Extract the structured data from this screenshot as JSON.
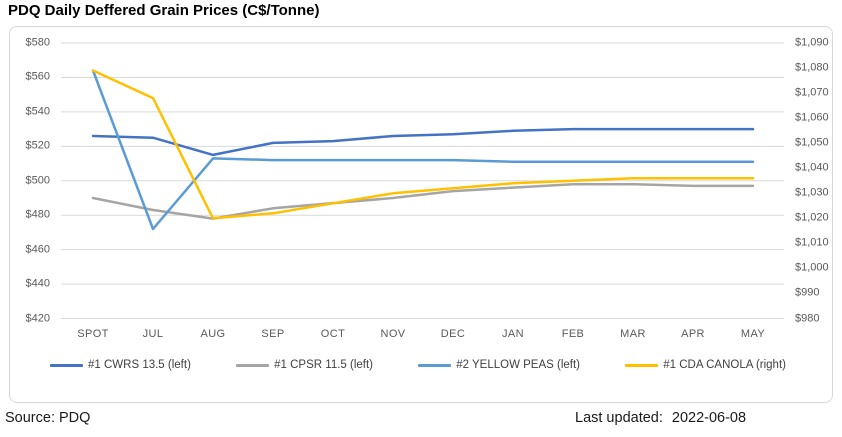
{
  "footer": {
    "source": "Source: PDQ",
    "last_updated_label": "Last updated:",
    "last_updated_value": "2022-06-08"
  },
  "chart_data": {
    "type": "line",
    "title": "PDQ Daily Deffered Grain Prices (C$/Tonne)",
    "categories": [
      "SPOT",
      "JUL",
      "AUG",
      "SEP",
      "OCT",
      "NOV",
      "DEC",
      "JAN",
      "FEB",
      "MAR",
      "APR",
      "MAY"
    ],
    "grid": true,
    "legend_position": "bottom",
    "left_axis": {
      "min": 420,
      "max": 580,
      "step": 20,
      "tick_labels": [
        "$580",
        "$560",
        "$540",
        "$520",
        "$500",
        "$480",
        "$460",
        "$440",
        "$420"
      ]
    },
    "right_axis": {
      "min": 980,
      "max": 1090,
      "step": 10,
      "tick_labels": [
        "$1,090",
        "$1,080",
        "$1,070",
        "$1,060",
        "$1,050",
        "$1,040",
        "$1,030",
        "$1,020",
        "$1,010",
        "$1,000",
        "$990",
        "$980"
      ]
    },
    "series": [
      {
        "name": "#1 CWRS 13.5 (left)",
        "axis": "left",
        "color": "#4472C4",
        "values": [
          526,
          525,
          515,
          522,
          523,
          526,
          527,
          529,
          530,
          530,
          530,
          530
        ]
      },
      {
        "name": "#1 CPSR 11.5 (left)",
        "axis": "left",
        "color": "#A5A5A5",
        "values": [
          490,
          483,
          478,
          484,
          487,
          490,
          494,
          496,
          498,
          498,
          497,
          497
        ]
      },
      {
        "name": "#2 YELLOW PEAS (left)",
        "axis": "left",
        "color": "#5B9BD5",
        "values": [
          564,
          472,
          513,
          512,
          512,
          512,
          512,
          511,
          511,
          511,
          511,
          511
        ]
      },
      {
        "name": "#1 CDA CANOLA (right)",
        "axis": "right",
        "color": "#FFC000",
        "values": [
          1079,
          1068,
          1020,
          1022,
          1026,
          1030,
          1032,
          1034,
          1035,
          1036,
          1036,
          1036
        ]
      }
    ],
    "colors": {
      "gridline": "#D9D9D9",
      "border": "#D9D9D9",
      "axis_text": "#595959",
      "legend_text": "#404040"
    }
  }
}
